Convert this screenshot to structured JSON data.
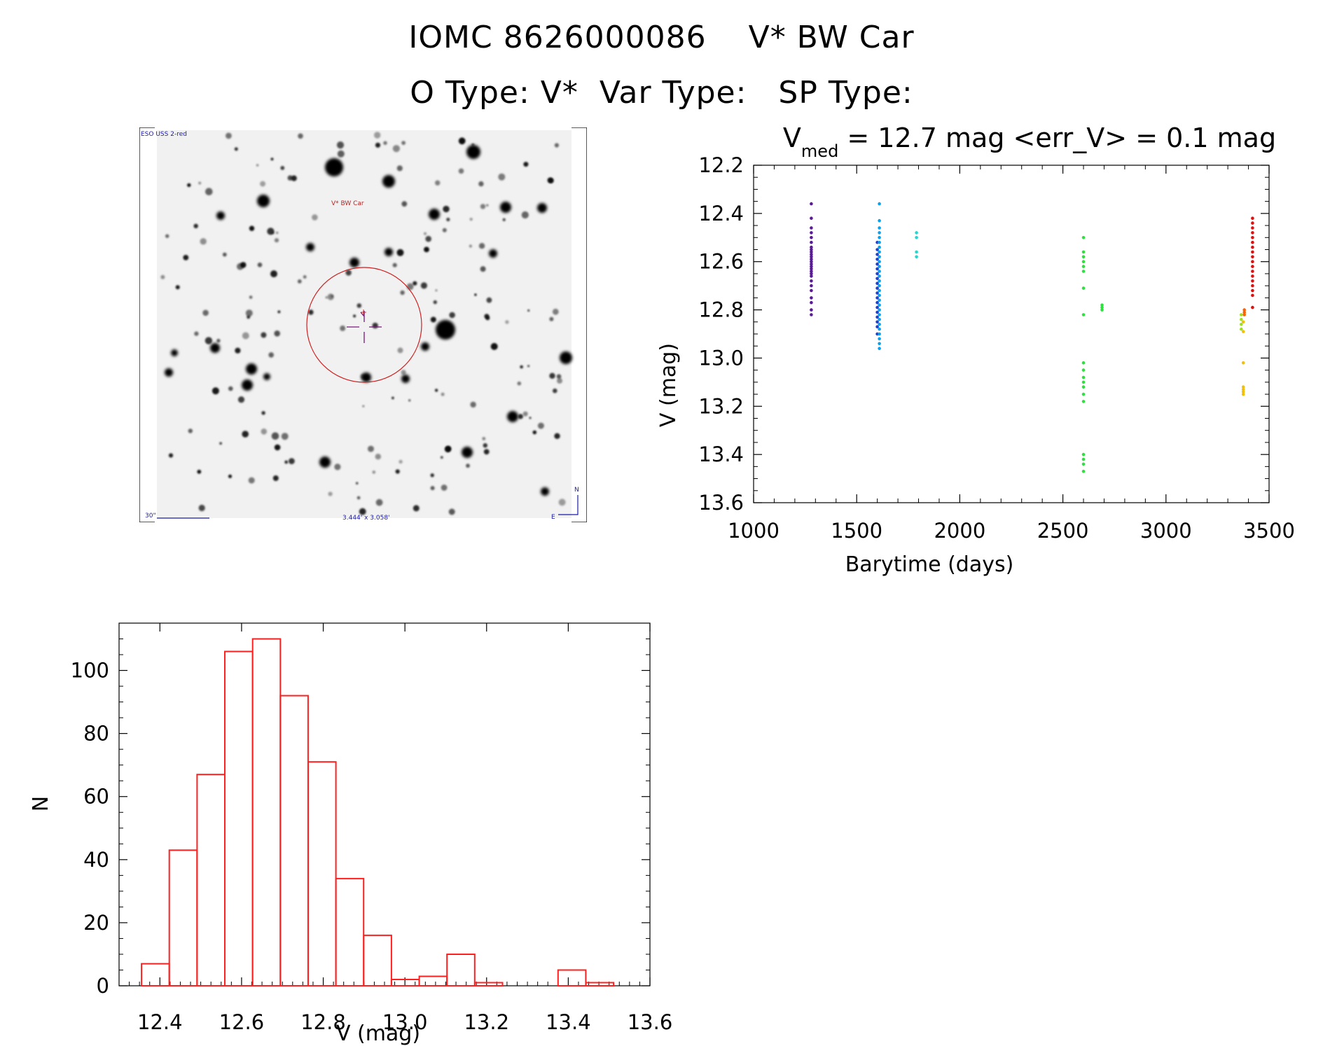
{
  "header": {
    "line1": "IOMC 8626000086    V* BW Car",
    "line2": "O Type: V*  Var Type:   SP Type:"
  },
  "image_panel": {
    "survey_label": "ESO USS 2-red",
    "object_label": "V* BW Car",
    "scale_label": "30\"",
    "fov_label": "3.444' x 3.058'",
    "compass_n": "N",
    "compass_e": "E"
  },
  "colors": {
    "hist_bar": "#ff2020",
    "marker_circle": "#cc2222",
    "crosshair": "#7a1a7a",
    "annotation_blue": "#1a1aaa"
  },
  "chart_data": [
    {
      "type": "scatter",
      "title_main": "V",
      "title_sub": "med",
      "title_rest": " = 12.7 mag <err_V> = 0.1 mag",
      "xlabel": "Barytime (days)",
      "ylabel": "V (mag)",
      "xlim": [
        1000,
        3500
      ],
      "ylim": [
        13.6,
        12.2
      ],
      "y_inverted": true,
      "xticks": [
        "1000",
        "1500",
        "2000",
        "2500",
        "3000",
        "3500"
      ],
      "yticks": [
        "12.2",
        "12.4",
        "12.6",
        "12.8",
        "13.0",
        "13.2",
        "13.4",
        "13.6"
      ],
      "groups": [
        {
          "x": 1280,
          "color": "#5a1a9a",
          "y": [
            12.36,
            12.42,
            12.46,
            12.48,
            12.5,
            12.52,
            12.54,
            12.55,
            12.56,
            12.57,
            12.58,
            12.59,
            12.6,
            12.61,
            12.62,
            12.63,
            12.64,
            12.65,
            12.66,
            12.68,
            12.7,
            12.72,
            12.75,
            12.77,
            12.8,
            12.82
          ]
        },
        {
          "x": 1600,
          "color": "#2040d0",
          "y": [
            12.52,
            12.55,
            12.57,
            12.59,
            12.61,
            12.63,
            12.65,
            12.67,
            12.69,
            12.71,
            12.73,
            12.75,
            12.77,
            12.79,
            12.81,
            12.83,
            12.85,
            12.87,
            12.9
          ]
        },
        {
          "x": 1610,
          "color": "#10a0e8",
          "y": [
            12.36,
            12.43,
            12.46,
            12.48,
            12.5,
            12.52,
            12.54,
            12.56,
            12.58,
            12.6,
            12.62,
            12.64,
            12.66,
            12.68,
            12.7,
            12.72,
            12.74,
            12.76,
            12.78,
            12.8,
            12.82,
            12.84,
            12.86,
            12.88,
            12.9,
            12.92,
            12.94,
            12.96
          ]
        },
        {
          "x": 1790,
          "color": "#20d8d0",
          "y": [
            12.48,
            12.5,
            12.56,
            12.58
          ]
        },
        {
          "x": 2600,
          "color": "#30e040",
          "y": [
            12.5,
            12.56,
            12.58,
            12.6,
            12.62,
            12.64,
            12.71,
            12.82,
            13.02,
            13.05,
            13.08,
            13.1,
            13.12,
            13.15,
            13.18,
            13.4,
            13.42,
            13.44,
            13.47
          ]
        },
        {
          "x": 2690,
          "color": "#30e040",
          "y": [
            12.78,
            12.79,
            12.8
          ]
        },
        {
          "x": 3365,
          "color": "#a0e020",
          "y": [
            12.82,
            12.84,
            12.86,
            12.88
          ]
        },
        {
          "x": 3375,
          "color": "#f0c010",
          "y": [
            12.85,
            12.89,
            13.02,
            13.12,
            13.13,
            13.14,
            13.15
          ]
        },
        {
          "x": 3380,
          "color": "#ff6000",
          "y": [
            12.8,
            12.81,
            12.82
          ]
        },
        {
          "x": 3420,
          "color": "#e01010",
          "y": [
            12.42,
            12.44,
            12.46,
            12.48,
            12.5,
            12.52,
            12.54,
            12.56,
            12.58,
            12.6,
            12.62,
            12.64,
            12.66,
            12.68,
            12.7,
            12.72,
            12.74,
            12.79
          ]
        }
      ]
    },
    {
      "type": "bar",
      "title": "",
      "xlabel": "V (mag)",
      "ylabel": "N",
      "xlim": [
        12.3,
        13.6
      ],
      "ylim": [
        0,
        115
      ],
      "xticks": [
        "12.4",
        "12.6",
        "12.8",
        "13.0",
        "13.2",
        "13.4",
        "13.6"
      ],
      "yticks": [
        "0",
        "20",
        "40",
        "60",
        "80",
        "100"
      ],
      "bin_width": 0.068,
      "bin_starts": [
        12.355,
        12.423,
        12.491,
        12.559,
        12.627,
        12.695,
        12.763,
        12.831,
        12.899,
        12.967,
        13.035,
        13.103,
        13.171,
        13.239,
        13.307,
        13.375,
        13.443
      ],
      "values": [
        7,
        43,
        67,
        106,
        110,
        92,
        71,
        34,
        16,
        2,
        3,
        10,
        1,
        0,
        0,
        5,
        1
      ]
    }
  ]
}
